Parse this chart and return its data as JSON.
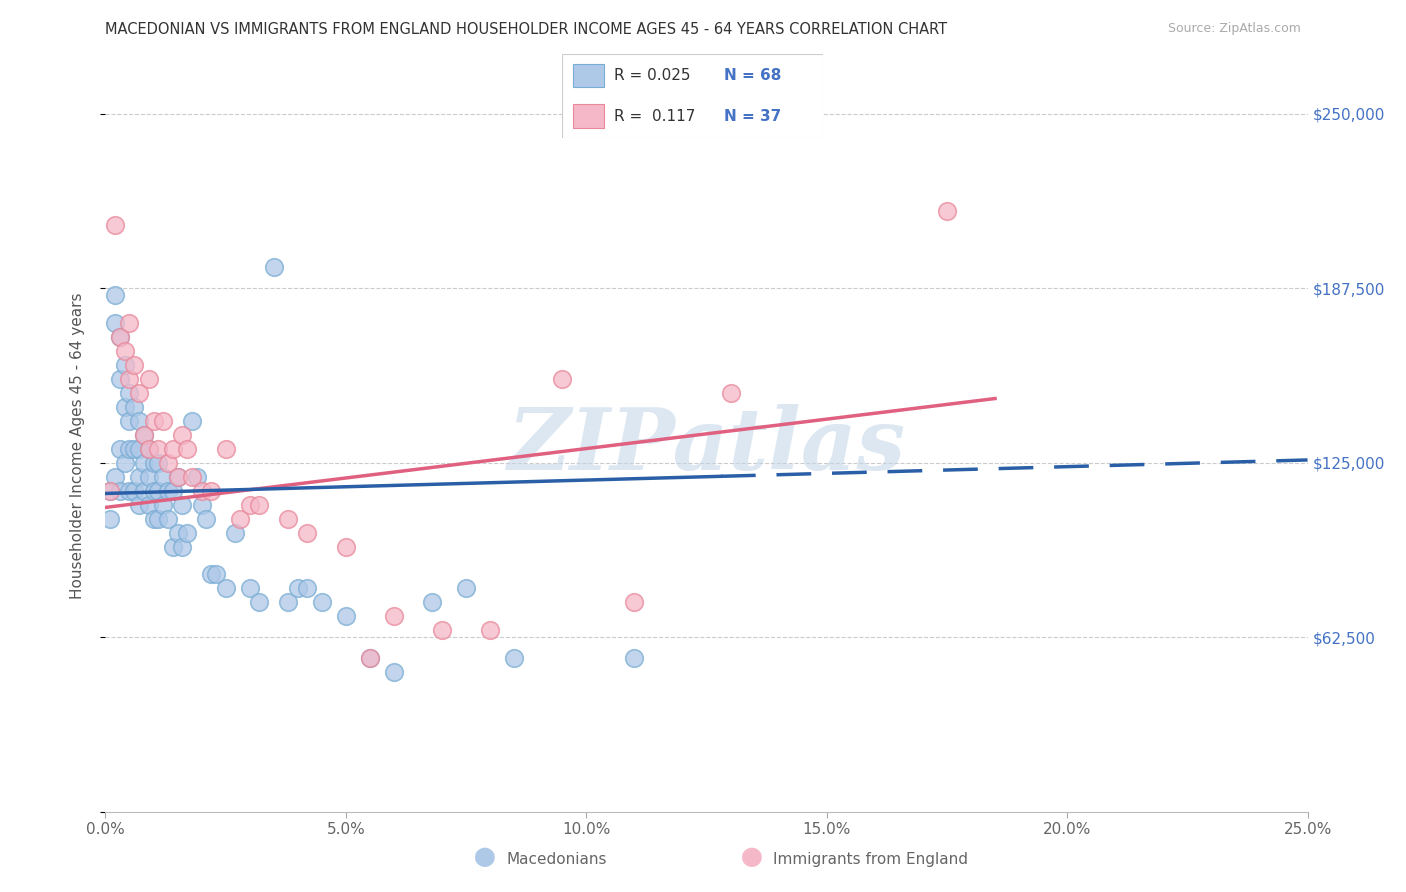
{
  "title": "MACEDONIAN VS IMMIGRANTS FROM ENGLAND HOUSEHOLDER INCOME AGES 45 - 64 YEARS CORRELATION CHART",
  "source": "Source: ZipAtlas.com",
  "ylabel": "Householder Income Ages 45 - 64 years",
  "yticks": [
    0,
    62500,
    125000,
    187500,
    250000
  ],
  "ytick_labels": [
    "",
    "$62,500",
    "$125,000",
    "$187,500",
    "$250,000"
  ],
  "xmin": 0.0,
  "xmax": 0.25,
  "ymin": 0,
  "ymax": 262000,
  "blue_fill": "#aec8e8",
  "blue_edge": "#7aadd4",
  "pink_fill": "#f5b8c8",
  "pink_edge": "#e8889a",
  "blue_line_color": "#2a5fa8",
  "pink_line_color": "#e06080",
  "r_n_text_color": "#4472c4",
  "watermark": "ZIPatlas",
  "legend_label1": "Macedonians",
  "legend_label2": "Immigrants from England",
  "blue_x": [
    0.001,
    0.001,
    0.002,
    0.002,
    0.002,
    0.003,
    0.003,
    0.003,
    0.003,
    0.004,
    0.004,
    0.004,
    0.005,
    0.005,
    0.005,
    0.005,
    0.006,
    0.006,
    0.006,
    0.007,
    0.007,
    0.007,
    0.007,
    0.008,
    0.008,
    0.008,
    0.009,
    0.009,
    0.009,
    0.01,
    0.01,
    0.01,
    0.011,
    0.011,
    0.011,
    0.012,
    0.012,
    0.013,
    0.013,
    0.014,
    0.014,
    0.015,
    0.015,
    0.016,
    0.016,
    0.017,
    0.018,
    0.019,
    0.02,
    0.021,
    0.022,
    0.023,
    0.025,
    0.027,
    0.03,
    0.032,
    0.035,
    0.038,
    0.04,
    0.042,
    0.045,
    0.05,
    0.055,
    0.06,
    0.068,
    0.075,
    0.085,
    0.11
  ],
  "blue_y": [
    115000,
    105000,
    185000,
    175000,
    120000,
    170000,
    155000,
    130000,
    115000,
    160000,
    145000,
    125000,
    150000,
    140000,
    130000,
    115000,
    145000,
    130000,
    115000,
    140000,
    130000,
    120000,
    110000,
    135000,
    125000,
    115000,
    130000,
    120000,
    110000,
    125000,
    115000,
    105000,
    125000,
    115000,
    105000,
    120000,
    110000,
    115000,
    105000,
    115000,
    95000,
    120000,
    100000,
    110000,
    95000,
    100000,
    140000,
    120000,
    110000,
    105000,
    85000,
    85000,
    80000,
    100000,
    80000,
    75000,
    195000,
    75000,
    80000,
    80000,
    75000,
    70000,
    55000,
    50000,
    75000,
    80000,
    55000,
    55000
  ],
  "pink_x": [
    0.001,
    0.002,
    0.003,
    0.004,
    0.005,
    0.005,
    0.006,
    0.007,
    0.008,
    0.009,
    0.009,
    0.01,
    0.011,
    0.012,
    0.013,
    0.014,
    0.015,
    0.016,
    0.017,
    0.018,
    0.02,
    0.022,
    0.025,
    0.028,
    0.03,
    0.032,
    0.038,
    0.042,
    0.05,
    0.055,
    0.06,
    0.07,
    0.08,
    0.095,
    0.11,
    0.13,
    0.175
  ],
  "pink_y": [
    115000,
    210000,
    170000,
    165000,
    175000,
    155000,
    160000,
    150000,
    135000,
    155000,
    130000,
    140000,
    130000,
    140000,
    125000,
    130000,
    120000,
    135000,
    130000,
    120000,
    115000,
    115000,
    130000,
    105000,
    110000,
    110000,
    105000,
    100000,
    95000,
    55000,
    70000,
    65000,
    65000,
    155000,
    75000,
    150000,
    215000
  ],
  "blue_trend_x0": 0.0,
  "blue_trend_x_solid_end": 0.128,
  "blue_trend_x1": 0.25,
  "blue_trend_y0": 114000,
  "blue_trend_y1": 126000,
  "pink_trend_x0": 0.0,
  "pink_trend_x1": 0.185,
  "pink_trend_y0": 109000,
  "pink_trend_y1": 148000
}
